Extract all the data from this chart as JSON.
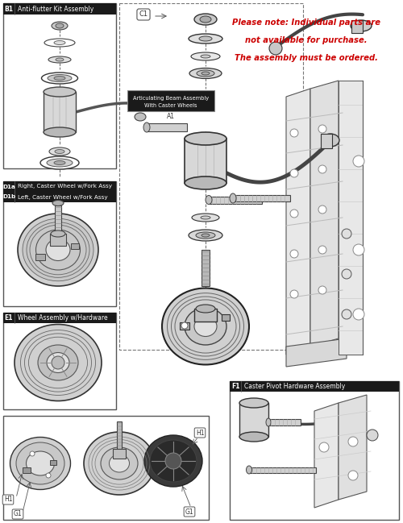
{
  "bg_color": "#ffffff",
  "border_color": "#555555",
  "dark_label": "#1a1a1a",
  "label_fg": "#ffffff",
  "note_color": "#cc0000",
  "note_lines": [
    "Please note: Individual parts are",
    "not available for purchase.",
    "The assembly must be ordered."
  ],
  "figsize": [
    5.0,
    6.49
  ],
  "dpi": 100
}
